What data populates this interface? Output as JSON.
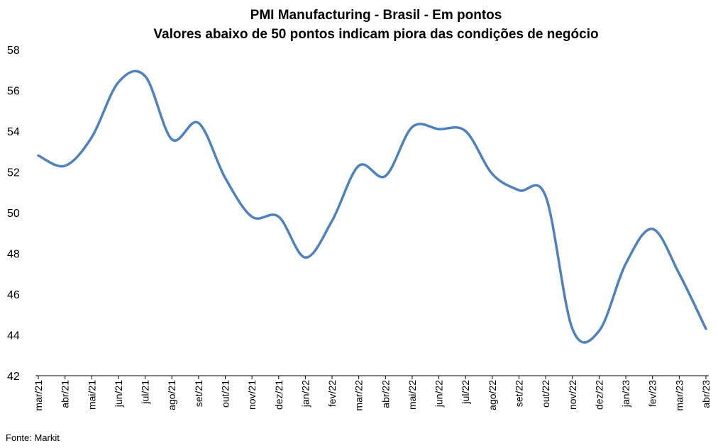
{
  "chart_data": {
    "type": "line",
    "title": "PMI Manufacturing - Brasil - Em pontos",
    "subtitle": "Valores abaixo de 50 pontos indicam piora das condições de negócio",
    "xlabel": "",
    "ylabel": "",
    "ylim": [
      42,
      58
    ],
    "yticks": [
      42,
      44,
      46,
      48,
      50,
      52,
      54,
      56,
      58
    ],
    "grid": false,
    "legend": "none",
    "line_color": "#4f81bd",
    "categories": [
      "mar/21",
      "abr/21",
      "mai/21",
      "jun/21",
      "jul/21",
      "ago/21",
      "set/21",
      "out/21",
      "nov/21",
      "dez/21",
      "jan/22",
      "fev/22",
      "mar/22",
      "abr/22",
      "mai/22",
      "jun/22",
      "jul/22",
      "ago/22",
      "set/22",
      "out/22",
      "nov/22",
      "dez/22",
      "jan/23",
      "fev/23",
      "mar/23",
      "abr/23"
    ],
    "series": [
      {
        "name": "",
        "values": [
          52.8,
          52.3,
          53.7,
          56.4,
          56.7,
          53.6,
          54.4,
          51.7,
          49.8,
          49.8,
          47.8,
          49.6,
          52.3,
          51.8,
          54.2,
          54.1,
          54.0,
          51.9,
          51.1,
          50.8,
          44.3,
          44.2,
          47.5,
          49.2,
          47.0,
          44.3
        ]
      }
    ]
  },
  "source": "Fonte: Markit"
}
